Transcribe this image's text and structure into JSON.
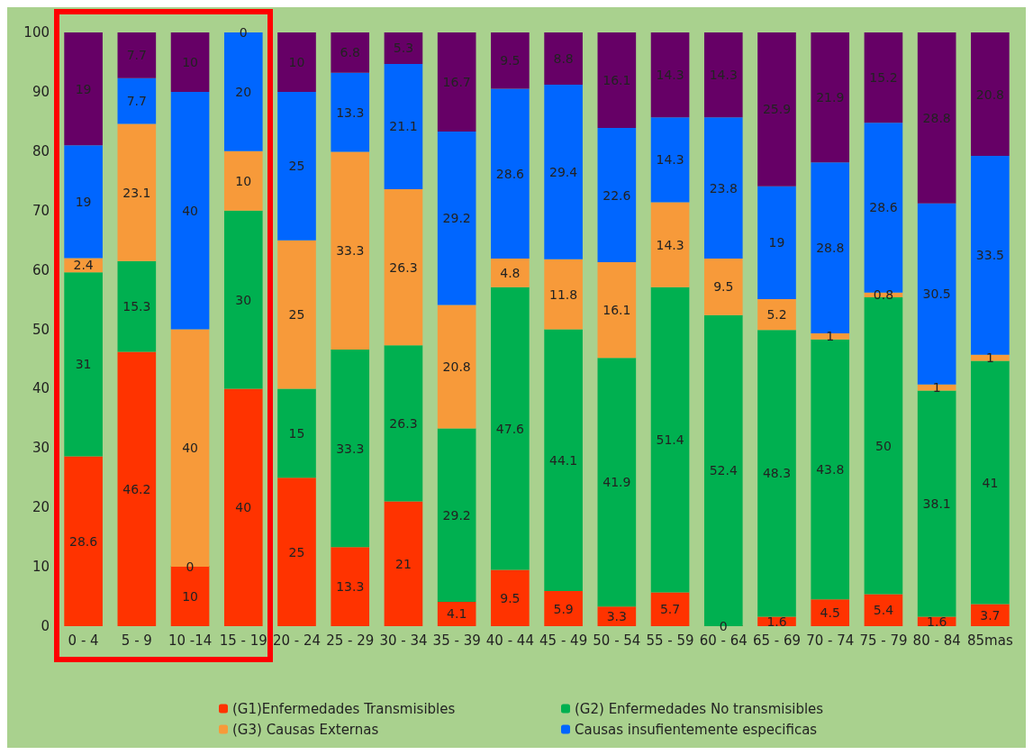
{
  "chart_data": {
    "type": "bar",
    "stacked": true,
    "data_labels": true,
    "legend": "bottom",
    "categories": [
      "0 - 4",
      "5 - 9",
      "10 -14",
      "15 - 19",
      "20 - 24",
      "25 - 29",
      "30 - 34",
      "35 - 39",
      "40 - 44",
      "45 - 49",
      "50 - 54",
      "55 - 59",
      "60 - 64",
      "65 - 69",
      "70 - 74",
      "75 - 79",
      "80 - 84",
      "85mas"
    ],
    "ylim": [
      0,
      100
    ],
    "yticks": [
      0,
      10,
      20,
      30,
      40,
      50,
      60,
      70,
      80,
      90,
      100
    ],
    "series": [
      {
        "name": "(G1)Enfermedades Transmisibles",
        "color": "#ff3300",
        "values": [
          28.6,
          46.2,
          10,
          40,
          25,
          13.3,
          21,
          4.1,
          9.5,
          5.9,
          3.3,
          5.7,
          0,
          1.6,
          4.5,
          5.4,
          1.6,
          3.7
        ]
      },
      {
        "name": "(G2) Enfermedades No transmisibles",
        "color": "#00b050",
        "values": [
          31,
          15.3,
          0,
          30,
          15,
          33.3,
          26.3,
          29.2,
          47.6,
          44.1,
          41.9,
          51.4,
          52.4,
          48.3,
          43.8,
          50,
          38.1,
          41
        ]
      },
      {
        "name": "(G3) Causas Externas",
        "color": "#f79a3a",
        "values": [
          2.4,
          23.1,
          40,
          10,
          25,
          33.3,
          26.3,
          20.8,
          4.8,
          11.8,
          16.1,
          14.3,
          9.5,
          5.2,
          1,
          0.8,
          1,
          1
        ]
      },
      {
        "name": "Causas insufientemente especificas",
        "color": "#0066ff",
        "values": [
          19,
          7.7,
          40,
          20,
          25,
          13.3,
          21.1,
          29.2,
          28.6,
          29.4,
          22.6,
          14.3,
          23.8,
          19,
          28.8,
          28.6,
          30.5,
          33.5
        ]
      },
      {
        "color": "#660066",
        "values": [
          19,
          7.7,
          10,
          0,
          10,
          6.8,
          5.3,
          16.7,
          9.5,
          8.8,
          16.1,
          14.3,
          14.3,
          25.9,
          21.9,
          15.2,
          28.8,
          20.8
        ]
      }
    ]
  }
}
